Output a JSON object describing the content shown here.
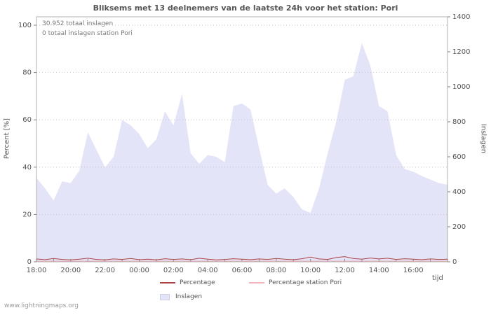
{
  "watermark": "www.lightningmaps.org",
  "chart_data": {
    "type": "area",
    "title": "Bliksems met 13 deelnemers van de laatste 24h voor het station: Pori",
    "annotations": [
      "30.952 totaal inslagen",
      "0 totaal inslagen station Pori"
    ],
    "xlabel": "tijd",
    "ylabel_left": "Percent  [%]",
    "ylabel_right": "Inslagen",
    "legend_position": "bottom",
    "grid": true,
    "start_time": "18:00",
    "interval_minutes": 30,
    "axes": {
      "left": {
        "ticks": [
          0,
          20,
          40,
          60,
          80,
          100
        ],
        "range": [
          0,
          100
        ]
      },
      "right": {
        "ticks": [
          0,
          200,
          400,
          600,
          800,
          1000,
          1200,
          1400
        ],
        "range": [
          0,
          1400
        ]
      },
      "x": {
        "tick_labels": [
          "18:00",
          "20:00",
          "22:00",
          "00:00",
          "02:00",
          "04:00",
          "06:00",
          "08:00",
          "10:00",
          "12:00",
          "14:00",
          "16:00"
        ],
        "hours": 24
      }
    },
    "series": [
      {
        "name": "Inslagen",
        "type": "area",
        "axis": "right",
        "color": "#e4e4f8",
        "values": [
          480,
          420,
          350,
          460,
          450,
          520,
          740,
          640,
          540,
          600,
          810,
          780,
          730,
          650,
          700,
          860,
          780,
          960,
          620,
          560,
          610,
          600,
          570,
          890,
          905,
          870,
          650,
          440,
          390,
          420,
          370,
          300,
          280,
          420,
          620,
          800,
          1040,
          1060,
          1250,
          1120,
          890,
          860,
          610,
          530,
          515,
          490,
          470,
          450,
          440
        ]
      },
      {
        "name": "Percentage",
        "type": "line",
        "axis": "left",
        "color": "#aa4444",
        "values": [
          1.2,
          0.9,
          1.4,
          1.0,
          0.8,
          1.1,
          1.5,
          1.0,
          0.8,
          1.2,
          1.0,
          1.4,
          0.9,
          1.1,
          0.8,
          1.3,
          1.0,
          1.2,
          0.9,
          1.5,
          1.1,
          0.8,
          1.0,
          1.3,
          1.1,
          0.9,
          1.2,
          1.0,
          1.4,
          1.1,
          0.9,
          1.3,
          2.0,
          1.2,
          1.0,
          1.8,
          2.2,
          1.4,
          1.1,
          1.6,
          1.2,
          1.5,
          1.0,
          1.3,
          1.1,
          0.9,
          1.2,
          1.0,
          1.1
        ]
      },
      {
        "name": "Percentage station Pori",
        "type": "line",
        "axis": "left",
        "color": "#f0b4bc",
        "values": [
          0.3,
          0.3,
          0.3,
          0.3,
          0.3,
          0.3,
          0.3,
          0.3,
          0.3,
          0.3,
          0.3,
          0.3,
          0.3,
          0.3,
          0.3,
          0.3,
          0.3,
          0.3,
          0.3,
          0.3,
          0.3,
          0.3,
          0.3,
          0.3,
          0.3,
          0.3,
          0.3,
          0.3,
          0.3,
          0.3,
          0.3,
          0.3,
          0.3,
          0.3,
          0.3,
          0.3,
          0.3,
          0.3,
          0.3,
          0.3,
          0.3,
          0.3,
          0.3,
          0.3,
          0.3,
          0.3,
          0.3,
          0.3,
          0.3
        ]
      }
    ]
  }
}
